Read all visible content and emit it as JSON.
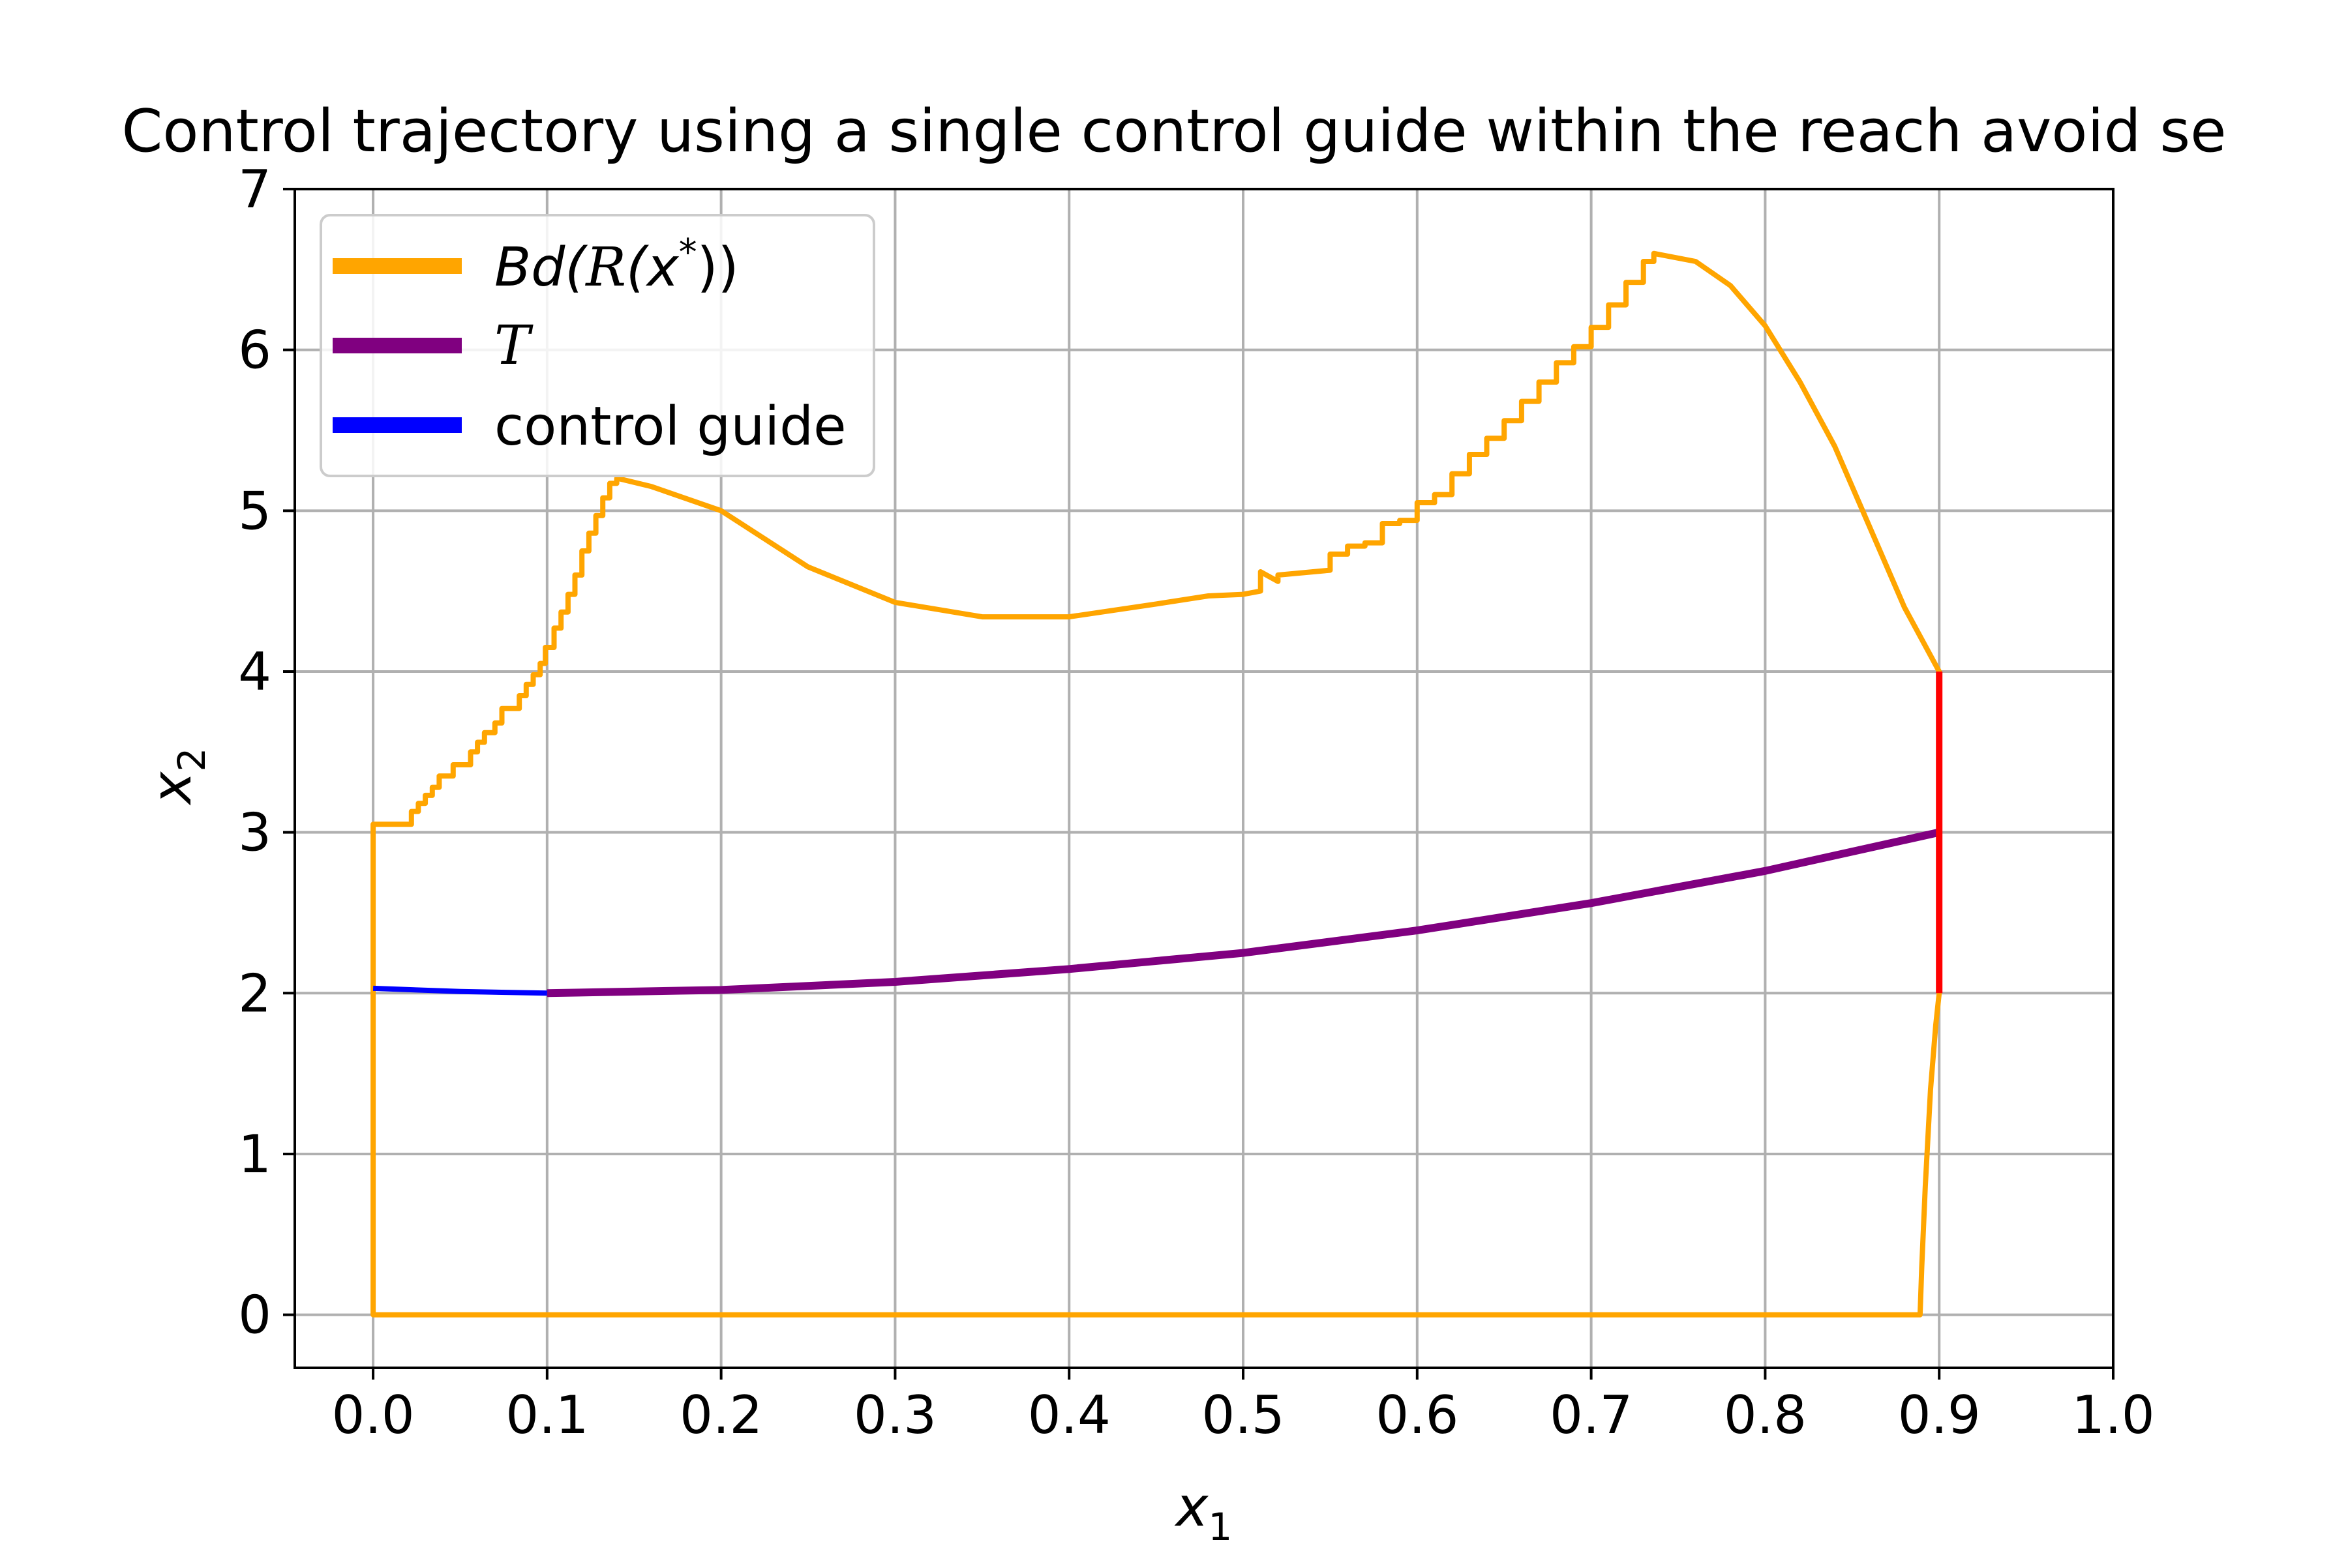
{
  "chart_data": {
    "type": "line",
    "title": "Control trajectory using a single control guide within the reach avoid se",
    "xlabel": "x",
    "xlabel_sub": "1",
    "ylabel": "x",
    "ylabel_sub": "2",
    "xlim": [
      -0.045,
      1.0
    ],
    "ylim": [
      -0.33,
      7.0
    ],
    "grid": true,
    "legend_position": "top-left",
    "xticks": [
      0.0,
      0.1,
      0.2,
      0.3,
      0.4,
      0.5,
      0.6,
      0.7,
      0.8,
      0.9,
      1.0
    ],
    "xtick_labels": [
      "0.0",
      "0.1",
      "0.2",
      "0.3",
      "0.4",
      "0.5",
      "0.6",
      "0.7",
      "0.8",
      "0.9",
      "1.0"
    ],
    "yticks": [
      0,
      1,
      2,
      3,
      4,
      5,
      6,
      7
    ],
    "ytick_labels": [
      "0",
      "1",
      "2",
      "3",
      "4",
      "5",
      "6",
      "7"
    ],
    "legend": [
      {
        "label_main": "Bd(",
        "label_script": "R",
        "label_paren": "(x",
        "label_sup": "*",
        "label_end": "))",
        "color": "#FFA500"
      },
      {
        "label_script": "T",
        "color": "#800080"
      },
      {
        "label_main": "control guide",
        "color": "#0000FF"
      }
    ],
    "series": [
      {
        "key": "boundary",
        "color": "#FFA500",
        "x": [
          0.0,
          0.0,
          0.0,
          0.011,
          0.011,
          0.022,
          0.022,
          0.026,
          0.026,
          0.03,
          0.03,
          0.034,
          0.034,
          0.038,
          0.038,
          0.046,
          0.046,
          0.056,
          0.056,
          0.06,
          0.06,
          0.064,
          0.064,
          0.07,
          0.07,
          0.074,
          0.074,
          0.084,
          0.084,
          0.088,
          0.088,
          0.092,
          0.092,
          0.096,
          0.096,
          0.099,
          0.099,
          0.104,
          0.104,
          0.108,
          0.108,
          0.112,
          0.112,
          0.116,
          0.116,
          0.12,
          0.12,
          0.124,
          0.124,
          0.128,
          0.128,
          0.132,
          0.132,
          0.136,
          0.136,
          0.14,
          0.14,
          0.141,
          0.16,
          0.2,
          0.25,
          0.3,
          0.35,
          0.4,
          0.45,
          0.48,
          0.5,
          0.51,
          0.51,
          0.52,
          0.52,
          0.55,
          0.55,
          0.56,
          0.56,
          0.57,
          0.57,
          0.58,
          0.58,
          0.59,
          0.59,
          0.6,
          0.6,
          0.61,
          0.61,
          0.62,
          0.62,
          0.63,
          0.63,
          0.64,
          0.64,
          0.65,
          0.65,
          0.66,
          0.66,
          0.67,
          0.67,
          0.68,
          0.68,
          0.69,
          0.69,
          0.7,
          0.7,
          0.71,
          0.71,
          0.72,
          0.72,
          0.73,
          0.73,
          0.736,
          0.736,
          0.76,
          0.78,
          0.8,
          0.82,
          0.84,
          0.86,
          0.88,
          0.9,
          0.9,
          0.898,
          0.895,
          0.892,
          0.89,
          0.889,
          0.0,
          0.0
        ],
        "y": [
          3.0,
          3.0,
          3.05,
          3.05,
          3.05,
          3.05,
          3.13,
          3.13,
          3.18,
          3.18,
          3.23,
          3.23,
          3.28,
          3.28,
          3.35,
          3.35,
          3.42,
          3.42,
          3.5,
          3.5,
          3.56,
          3.56,
          3.62,
          3.62,
          3.68,
          3.68,
          3.77,
          3.77,
          3.85,
          3.85,
          3.92,
          3.92,
          3.98,
          3.98,
          4.05,
          4.05,
          4.15,
          4.15,
          4.27,
          4.27,
          4.37,
          4.37,
          4.48,
          4.48,
          4.6,
          4.6,
          4.75,
          4.75,
          4.86,
          4.86,
          4.97,
          4.97,
          5.08,
          5.08,
          5.17,
          5.17,
          5.2,
          5.2,
          5.15,
          5.0,
          4.65,
          4.43,
          4.34,
          4.34,
          4.42,
          4.47,
          4.48,
          4.5,
          4.62,
          4.56,
          4.6,
          4.63,
          4.73,
          4.73,
          4.78,
          4.78,
          4.8,
          4.8,
          4.92,
          4.92,
          4.94,
          4.94,
          5.05,
          5.05,
          5.1,
          5.1,
          5.23,
          5.23,
          5.35,
          5.35,
          5.45,
          5.45,
          5.56,
          5.56,
          5.68,
          5.68,
          5.8,
          5.8,
          5.92,
          5.92,
          6.02,
          6.02,
          6.14,
          6.14,
          6.28,
          6.28,
          6.42,
          6.42,
          6.55,
          6.55,
          6.6,
          6.55,
          6.4,
          6.15,
          5.8,
          5.4,
          4.9,
          4.4,
          4.0,
          2.0,
          1.8,
          1.4,
          0.8,
          0.3,
          0.0,
          0.0,
          3.0
        ]
      },
      {
        "key": "target",
        "color": "#800080",
        "x": [
          0.1,
          0.2,
          0.3,
          0.4,
          0.5,
          0.6,
          0.7,
          0.8,
          0.9
        ],
        "y": [
          2.0,
          2.02,
          2.07,
          2.15,
          2.25,
          2.39,
          2.56,
          2.76,
          3.0
        ]
      },
      {
        "key": "control_guide",
        "color": "#0000FF",
        "x": [
          0.0,
          0.05,
          0.1
        ],
        "y": [
          2.03,
          2.01,
          2.0
        ]
      },
      {
        "key": "red_edge",
        "color": "#FF0000",
        "x": [
          0.9,
          0.9
        ],
        "y": [
          2.0,
          4.0
        ]
      }
    ]
  }
}
